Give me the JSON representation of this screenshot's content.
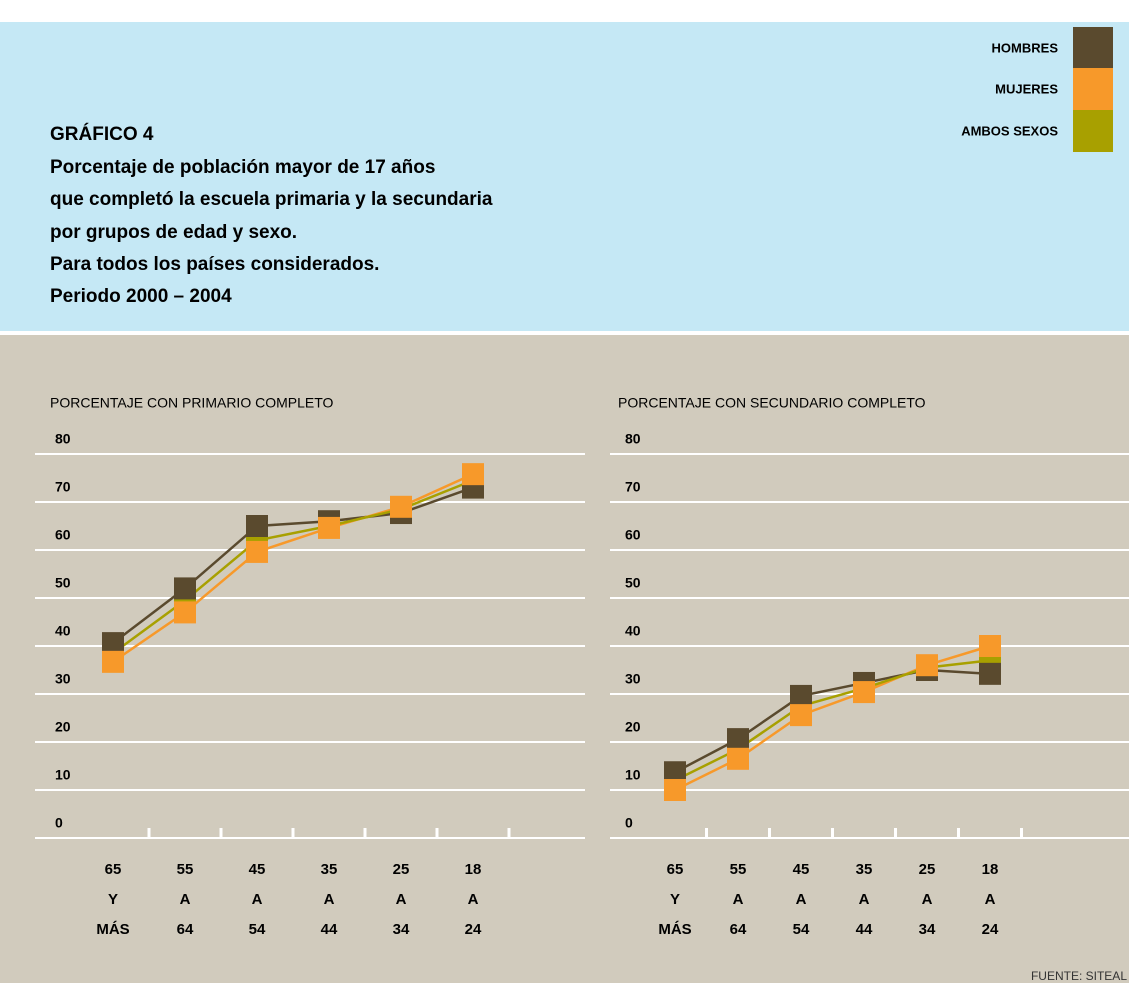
{
  "header": {
    "label": "GRÁFICO 4",
    "lines": [
      "Porcentaje de población mayor de 17 años",
      "que completó la escuela primaria y la secundaria",
      "por grupos de edad y sexo.",
      "Para todos los países considerados.",
      "Periodo 2000 – 2004"
    ]
  },
  "source": "FUENTE: SITEAL",
  "chart_data": [
    {
      "type": "line",
      "title": "PORCENTAJE CON PRIMARIO COMPLETO",
      "categories": [
        [
          "65",
          "Y",
          "MÁS"
        ],
        [
          "55",
          "A",
          "64"
        ],
        [
          "45",
          "A",
          "54"
        ],
        [
          "35",
          "A",
          "44"
        ],
        [
          "25",
          "A",
          "34"
        ],
        [
          "18",
          "A",
          "24"
        ]
      ],
      "series": [
        {
          "name": "HOMBRES",
          "color": "#5a4a2e",
          "values": [
            40.6,
            52,
            65,
            66,
            67.7,
            73
          ]
        },
        {
          "name": "MUJERES",
          "color": "#f7992a",
          "values": [
            36.7,
            47,
            59.6,
            64.6,
            69,
            75.8
          ]
        },
        {
          "name": "AMBOS SEXOS",
          "color": "#a8a000",
          "values": [
            38.5,
            49.5,
            62,
            65,
            68.5,
            74.5
          ]
        }
      ],
      "ylim": [
        0,
        80
      ],
      "yticks": [
        0,
        10,
        20,
        30,
        40,
        50,
        60,
        70,
        80
      ],
      "grid": true
    },
    {
      "type": "line",
      "title": "PORCENTAJE CON SECUNDARIO COMPLETO",
      "categories": [
        [
          "65",
          "Y",
          "MÁS"
        ],
        [
          "55",
          "A",
          "64"
        ],
        [
          "45",
          "A",
          "54"
        ],
        [
          "35",
          "A",
          "44"
        ],
        [
          "25",
          "A",
          "34"
        ],
        [
          "18",
          "A",
          "24"
        ]
      ],
      "series": [
        {
          "color": "#5a4a2e",
          "values": [
            13.7,
            20.6,
            29.6,
            32.3,
            35,
            34.2
          ]
        },
        {
          "color": "#f7992a",
          "values": [
            10,
            16.5,
            25.6,
            30.4,
            36,
            40
          ]
        },
        {
          "color": "#a8a000",
          "values": [
            12,
            18.5,
            27.5,
            31.2,
            35.5,
            37
          ]
        }
      ],
      "ylim": [
        0,
        80
      ],
      "yticks": [
        0,
        10,
        20,
        30,
        40,
        50,
        60,
        70,
        80
      ],
      "grid": true
    }
  ]
}
